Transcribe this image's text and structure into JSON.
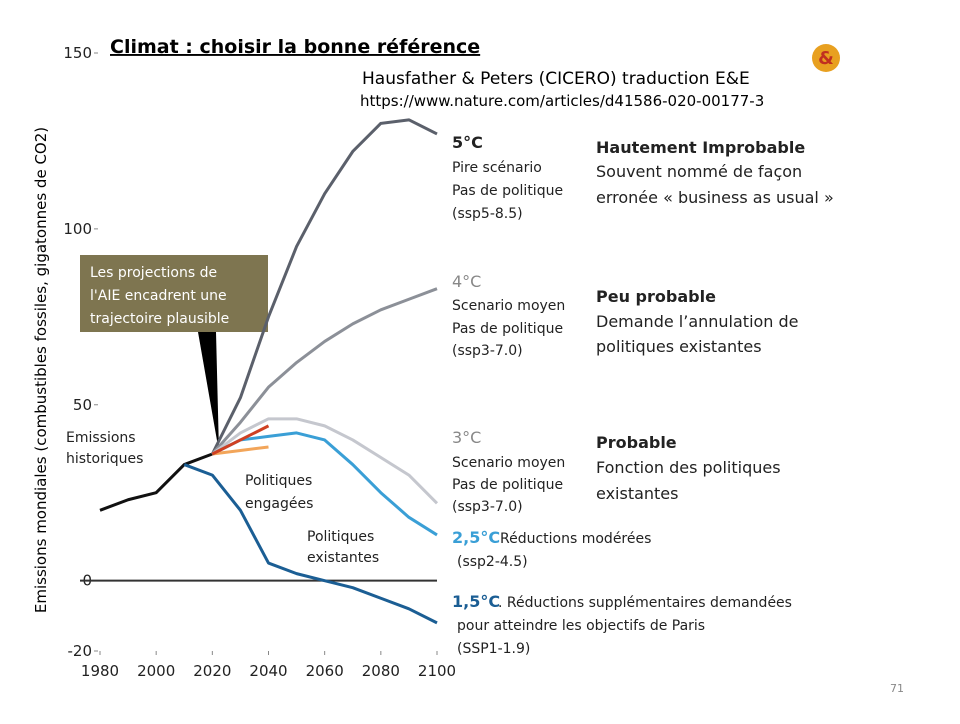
{
  "chart_data": {
    "type": "line",
    "title": "Climat : choisir la bonne référence",
    "subtitle": [
      "Hausfather & Peters (CICERO) traduction E&E",
      "https://www.nature.com/articles/d41586-020-00177-3"
    ],
    "y_label": "Emissions mondiales (combustibles fossiles, gigatonnes de CO2)",
    "x": [
      1980,
      1990,
      2000,
      2010,
      2020,
      2030,
      2040,
      2050,
      2060,
      2070,
      2080,
      2090,
      2100
    ],
    "series": [
      {
        "color": "#111111",
        "values": [
          20,
          23,
          25,
          33,
          36,
          null,
          null,
          null,
          null,
          null,
          null,
          null,
          null
        ]
      },
      {
        "color": "#5b606b",
        "values": [
          null,
          null,
          null,
          null,
          36,
          52,
          75,
          95,
          110,
          122,
          130,
          131,
          127
        ]
      },
      {
        "color": "#8c9098",
        "values": [
          null,
          null,
          null,
          null,
          36,
          45,
          55,
          62,
          68,
          73,
          77,
          80,
          83
        ]
      },
      {
        "color": "#c5c7ce",
        "values": [
          null,
          null,
          null,
          null,
          36,
          42,
          46,
          46,
          44,
          40,
          35,
          30,
          22
        ]
      },
      {
        "color": "#3a9fd6",
        "values": [
          null,
          null,
          null,
          null,
          36,
          40,
          41,
          42,
          40,
          33,
          25,
          18,
          13
        ]
      },
      {
        "color": "#1b5e94",
        "values": [
          null,
          null,
          null,
          33,
          30,
          20,
          5,
          2,
          0,
          -2,
          -5,
          -8,
          -12
        ]
      },
      {
        "color": "#f2a55a",
        "values": [
          null,
          null,
          null,
          null,
          36,
          37,
          38,
          null,
          null,
          null,
          null,
          null,
          null
        ]
      },
      {
        "color": "#cf4022",
        "values": [
          null,
          null,
          null,
          null,
          36,
          40,
          44,
          null,
          null,
          null,
          null,
          null,
          null
        ]
      }
    ],
    "xlim": [
      1980,
      2100
    ],
    "xticks": [
      1980,
      2000,
      2020,
      2040,
      2060,
      2080,
      2100
    ],
    "ylim": [
      -20,
      150
    ],
    "yticks": [
      -20,
      0,
      50,
      100,
      150
    ],
    "callout": [
      "Les projections de",
      "l'AIE encadrent une",
      "trajectoire plausible"
    ],
    "annotations": [
      "Emissions",
      "historiques",
      "Politiques",
      "engagées",
      "Politiques",
      "existantes",
      "5°C",
      "Pire scénario",
      "Pas de politique",
      "(ssp5-8.5)",
      "Hautement Improbable",
      "Souvent nommé de façon",
      "erronée « business as usual »",
      "4°C",
      "Scenario moyen",
      "Pas de politique",
      "(ssp3-7.0)",
      "Peu probable",
      "Demande l’annulation de",
      "politiques existantes",
      "3°C",
      "Scenario moyen",
      "Pas de politique",
      "(ssp3-7.0)",
      "Probable",
      "Fonction des politiques",
      "existantes",
      "2,5°C",
      " Réductions modérées",
      "(ssp2-4.5)",
      "1,5°C",
      ". Réductions supplémentaires  demandées",
      "pour atteindre les objectifs de Paris",
      "(SSP1-1.9)"
    ]
  },
  "logo": "&",
  "slide_number": "71"
}
